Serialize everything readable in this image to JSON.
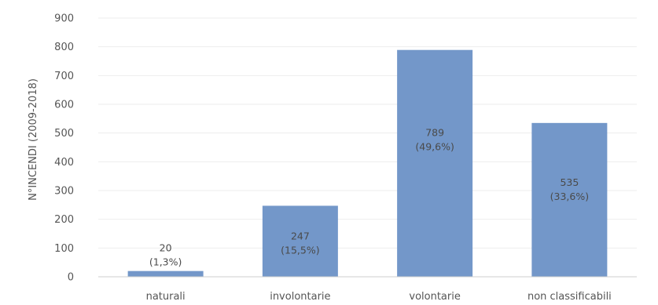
{
  "chart_data": {
    "type": "bar",
    "title": "",
    "xlabel": "",
    "ylabel": "N°INCENDI (2009-2018)",
    "ylim": [
      0,
      900
    ],
    "yticks": [
      0,
      100,
      200,
      300,
      400,
      500,
      600,
      700,
      800,
      900
    ],
    "grid": true,
    "bar_color": "#7397c9",
    "categories": [
      "naturali",
      "involontarie",
      "volontarie",
      "non classificabili"
    ],
    "values": [
      20,
      247,
      789,
      535
    ],
    "value_labels": [
      "20",
      "247",
      "789",
      "535"
    ],
    "percent_labels": [
      "(1,3%)",
      "(15,5%)",
      "(49,6%)",
      "(33,6%)"
    ]
  }
}
